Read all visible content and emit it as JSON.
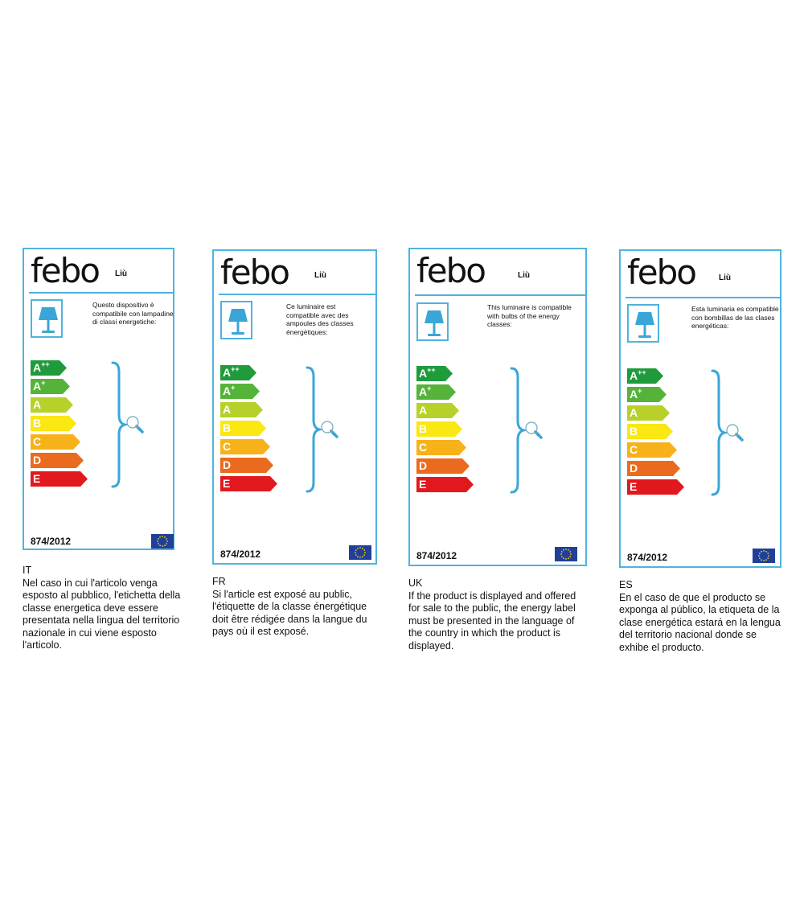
{
  "brand": "febo",
  "model": "Liù",
  "regulation": "874/2012",
  "energy_classes": [
    {
      "main": "A",
      "sup": "++",
      "color": "#1f9b3c",
      "width": 36
    },
    {
      "main": "A",
      "sup": "+",
      "color": "#55b33a",
      "width": 40
    },
    {
      "main": "A",
      "sup": "",
      "color": "#b7d12a",
      "width": 44
    },
    {
      "main": "B",
      "sup": "",
      "color": "#fbe711",
      "width": 48
    },
    {
      "main": "C",
      "sup": "",
      "color": "#f7b21a",
      "width": 53
    },
    {
      "main": "D",
      "sup": "",
      "color": "#ea6b1e",
      "width": 57
    },
    {
      "main": "E",
      "sup": "",
      "color": "#e2181f",
      "width": 62
    }
  ],
  "colors": {
    "border": "#4fb3dd",
    "lamp": "#3aa6d8",
    "eu_flag": "#1f3f99"
  },
  "panels": [
    {
      "lang_code": "IT",
      "description": "Questo dispositivo è compatibile con lampadine di classi energetiche:",
      "caption": "Nel caso in cui l'articolo venga esposto al pubblico, l'etichetta della classe energetica deve essere presentata nella lingua del territorio nazionale in cui viene esposto l'articolo."
    },
    {
      "lang_code": "FR",
      "description": "Ce luminaire est compatible avec des ampoules des classes énergétiques:",
      "caption": "Si l'article est exposé au public, l'étiquette de la classe énergétique doit être rédigée dans la langue du pays où il est exposé."
    },
    {
      "lang_code": "UK",
      "description": "This luminaire is compatible with bulbs of the energy classes:",
      "caption": "If the product is displayed and offered for sale to the public, the energy label must be presented in the language of the country in which the product is displayed."
    },
    {
      "lang_code": "ES",
      "description": "Esta luminaria es compatible con bombillas de las clases energéticas:",
      "caption": "En el caso de que el producto se exponga al público, la etiqueta de la clase energética estará en la lengua del territorio nacional donde se exhibe el producto."
    }
  ]
}
